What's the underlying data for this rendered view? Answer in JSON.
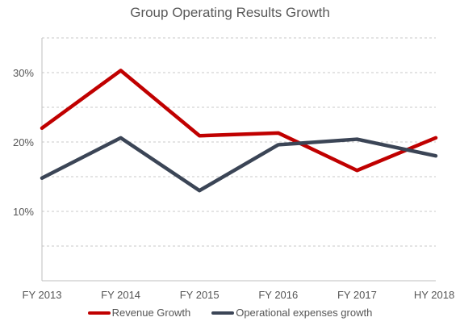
{
  "chart_data": {
    "type": "line",
    "title": "Group Operating Results Growth",
    "xlabel": "",
    "ylabel": "",
    "categories": [
      "FY 2013",
      "FY 2014",
      "FY 2015",
      "FY 2016",
      "FY 2017",
      "HY 2018"
    ],
    "series": [
      {
        "name": "Revenue Growth",
        "color": "#c00000",
        "values": [
          22,
          30.3,
          20.9,
          21.3,
          15.9,
          20.6
        ]
      },
      {
        "name": "Operational expenses growth",
        "color": "#3b4556",
        "values": [
          14.8,
          20.6,
          13.0,
          19.6,
          20.4,
          18.0
        ]
      }
    ],
    "ylim": [
      0,
      35
    ],
    "yticks": [
      10,
      20,
      30
    ],
    "ytick_labels": [
      "10%",
      "20%",
      "30%"
    ],
    "grid": "dashed horizontal every 5%",
    "legend": "bottom"
  }
}
